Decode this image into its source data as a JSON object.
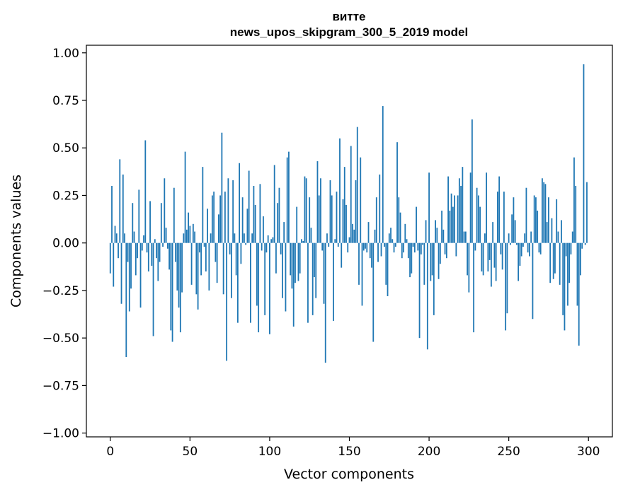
{
  "chart_data": {
    "type": "bar",
    "title_line1": "витте",
    "title_line2": "news_upos_skipgram_300_5_2019 model",
    "xlabel": "Vector components",
    "ylabel": "Components values",
    "xlim": [
      -15,
      315
    ],
    "ylim": [
      -1.02,
      1.04
    ],
    "xticks": [
      0,
      50,
      100,
      150,
      200,
      250,
      300
    ],
    "xtick_labels": [
      "0",
      "50",
      "100",
      "150",
      "200",
      "250",
      "300"
    ],
    "yticks": [
      1.0,
      0.75,
      0.5,
      0.25,
      0.0,
      -0.25,
      -0.5,
      -0.75,
      -1.0
    ],
    "ytick_labels": [
      "1.00",
      "0.75",
      "0.50",
      "0.25",
      "0.00",
      "−0.25",
      "−0.50",
      "−0.75",
      "−1.00"
    ],
    "bar_color": "#1f77b4",
    "series_name": "витте",
    "values": [
      -0.16,
      0.3,
      -0.23,
      0.09,
      0.05,
      -0.08,
      0.44,
      -0.32,
      0.36,
      0.05,
      -0.6,
      -0.1,
      -0.36,
      -0.24,
      0.21,
      0.06,
      -0.17,
      -0.08,
      0.28,
      -0.34,
      -0.04,
      0.04,
      0.54,
      -0.05,
      -0.15,
      0.22,
      -0.12,
      -0.49,
      0.02,
      -0.08,
      -0.2,
      -0.1,
      0.21,
      -0.02,
      0.34,
      0.08,
      -0.03,
      -0.14,
      -0.46,
      -0.52,
      0.29,
      -0.1,
      -0.25,
      -0.34,
      -0.47,
      -0.26,
      0.05,
      0.48,
      0.07,
      0.16,
      0.09,
      -0.22,
      0.1,
      0.06,
      -0.27,
      -0.35,
      -0.05,
      -0.17,
      0.4,
      -0.02,
      -0.15,
      0.18,
      -0.25,
      0.05,
      0.25,
      0.27,
      -0.1,
      -0.21,
      0.15,
      0.25,
      0.58,
      -0.27,
      0.27,
      -0.62,
      0.34,
      -0.06,
      -0.29,
      0.33,
      0.05,
      -0.17,
      -0.42,
      0.42,
      -0.11,
      0.24,
      0.05,
      -0.01,
      0.18,
      0.38,
      -0.42,
      0.05,
      0.3,
      0.2,
      -0.33,
      -0.47,
      0.31,
      -0.04,
      0.14,
      -0.38,
      -0.05,
      0.04,
      -0.48,
      0.02,
      0.03,
      0.41,
      -0.16,
      0.21,
      0.29,
      -0.06,
      -0.29,
      0.11,
      -0.36,
      0.45,
      0.48,
      -0.17,
      -0.24,
      -0.44,
      -0.21,
      0.19,
      -0.2,
      -0.16,
      0.02,
      0.01,
      0.35,
      0.34,
      -0.42,
      0.24,
      0.08,
      -0.38,
      -0.18,
      -0.29,
      0.43,
      0.25,
      0.34,
      -0.04,
      -0.32,
      -0.63,
      0.05,
      -0.02,
      0.33,
      0.25,
      -0.41,
      0.02,
      0.27,
      -0.02,
      0.55,
      -0.13,
      0.23,
      0.4,
      0.2,
      -0.05,
      0.03,
      0.51,
      0.1,
      0.07,
      0.33,
      0.61,
      -0.22,
      0.45,
      -0.33,
      -0.04,
      -0.03,
      -0.05,
      0.11,
      -0.08,
      -0.13,
      -0.52,
      0.07,
      0.24,
      -0.1,
      0.36,
      -0.07,
      0.72,
      -0.02,
      -0.22,
      -0.28,
      0.05,
      0.08,
      0.02,
      -0.05,
      -0.02,
      0.53,
      0.24,
      0.16,
      -0.08,
      -0.05,
      0.1,
      0.02,
      -0.08,
      -0.18,
      -0.16,
      -0.02,
      -0.05,
      0.19,
      -0.04,
      -0.5,
      -0.06,
      -0.01,
      -0.22,
      0.12,
      -0.56,
      0.37,
      -0.2,
      -0.17,
      -0.38,
      0.12,
      0.08,
      -0.19,
      -0.11,
      0.17,
      0.07,
      -0.06,
      -0.08,
      0.35,
      0.17,
      0.26,
      0.19,
      0.25,
      -0.07,
      0.25,
      0.34,
      0.3,
      0.4,
      0.06,
      0.06,
      -0.17,
      -0.26,
      0.37,
      0.65,
      -0.47,
      -0.04,
      0.29,
      0.25,
      0.19,
      -0.15,
      -0.17,
      0.05,
      0.37,
      -0.15,
      -0.09,
      -0.23,
      0.11,
      -0.13,
      -0.2,
      0.27,
      0.35,
      -0.06,
      -0.14,
      0.27,
      -0.46,
      -0.37,
      0.05,
      -0.01,
      0.15,
      0.24,
      0.12,
      -0.01,
      -0.2,
      -0.12,
      -0.07,
      -0.02,
      0.05,
      0.29,
      -0.05,
      -0.07,
      0.06,
      -0.4,
      0.25,
      0.24,
      0.17,
      -0.05,
      -0.06,
      0.34,
      0.32,
      0.31,
      0.11,
      0.24,
      -0.21,
      0.13,
      -0.19,
      -0.16,
      0.23,
      0.06,
      -0.22,
      0.12,
      -0.38,
      -0.46,
      -0.07,
      -0.33,
      -0.21,
      -0.06,
      0.06,
      0.45,
      0.3,
      -0.33,
      -0.54,
      -0.17,
      -0.03,
      0.94,
      -0.01,
      0.32
    ]
  }
}
